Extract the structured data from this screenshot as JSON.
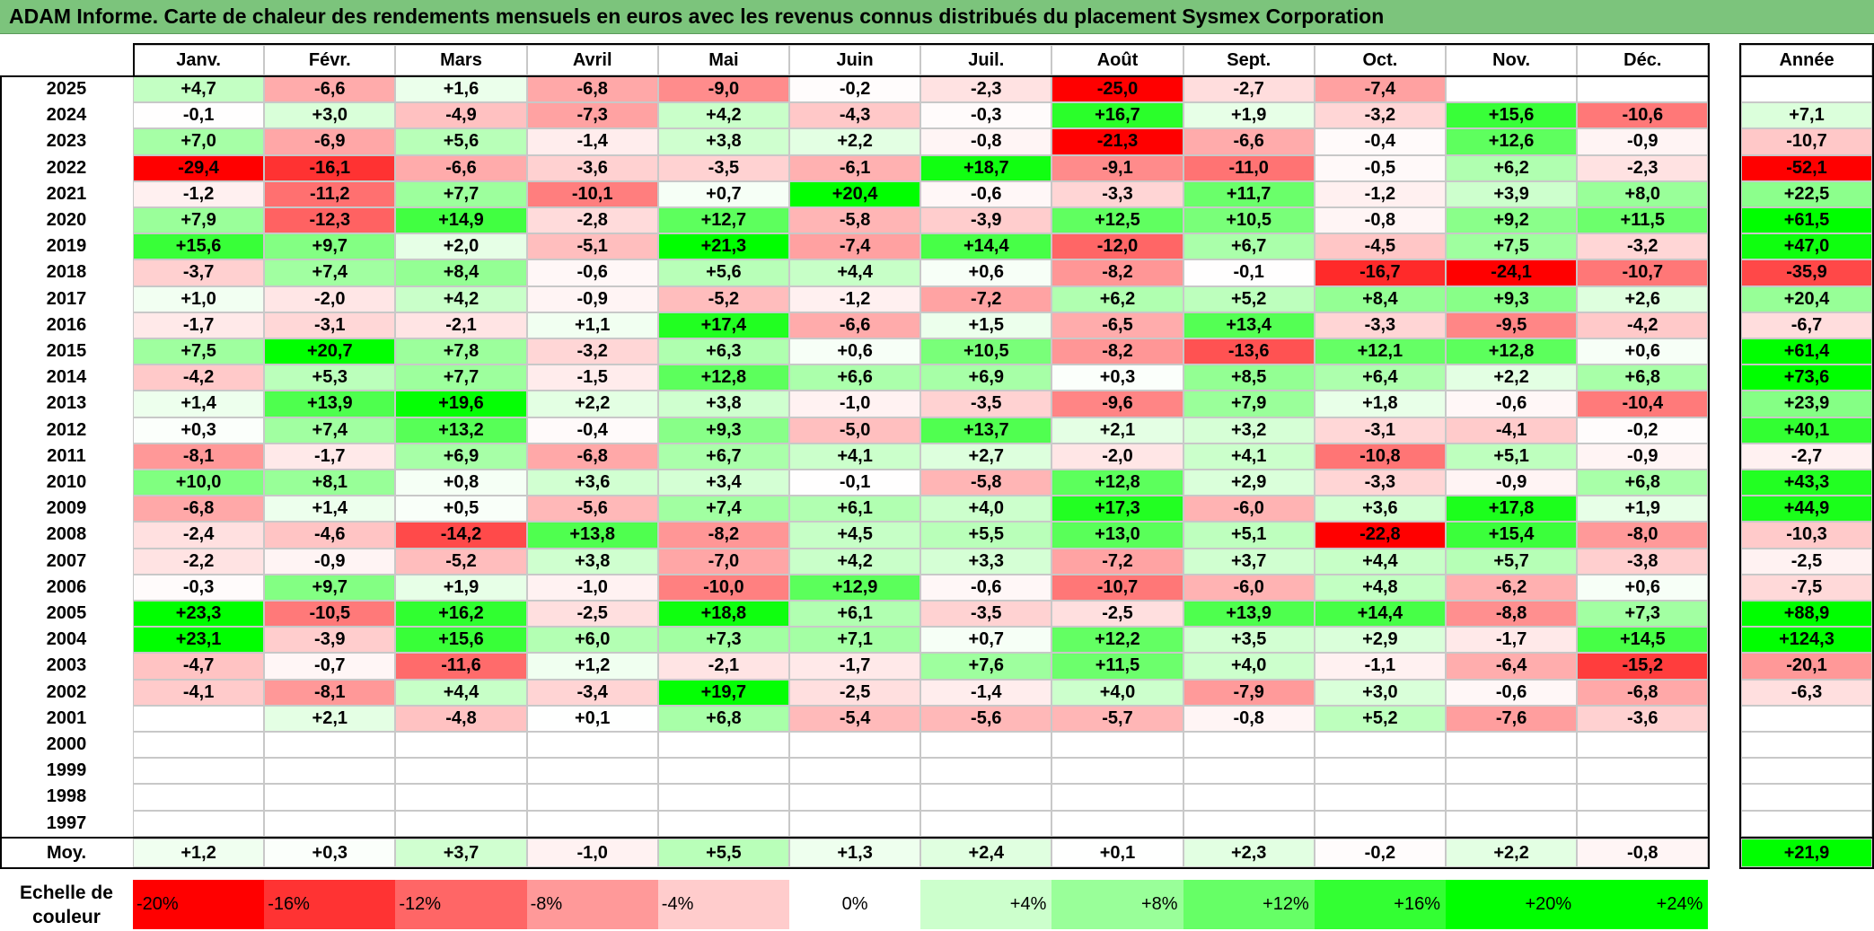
{
  "title": "ADAM Informe. Carte de chaleur des rendements mensuels en euros avec les revenus connus distribués du placement Sysmex Corporation",
  "months": [
    "Janv.",
    "Févr.",
    "Mars",
    "Avril",
    "Mai",
    "Juin",
    "Juil.",
    "Août",
    "Sept.",
    "Oct.",
    "Nov.",
    "Déc."
  ],
  "year_header": "Année",
  "average_label": "Moy.",
  "scale_label_line1": "Echelle de",
  "scale_label_line2": "couleur",
  "colors": {
    "negative": "#ff0000",
    "positive": "#00ff00",
    "neutral": "#ffffff",
    "title_bg": "#7cc47c"
  },
  "chart_data": {
    "type": "heatmap",
    "title": "ADAM Informe. Carte de chaleur des rendements mensuels en euros avec les revenus connus distribués du placement Sysmex Corporation",
    "rows": [
      {
        "year": "2025",
        "values": [
          "+4,7",
          "-6,6",
          "+1,6",
          "-6,8",
          "-9,0",
          "-0,2",
          "-2,3",
          "-25,0",
          "-2,7",
          "-7,4",
          "",
          ""
        ],
        "annual": ""
      },
      {
        "year": "2024",
        "values": [
          "-0,1",
          "+3,0",
          "-4,9",
          "-7,3",
          "+4,2",
          "-4,3",
          "-0,3",
          "+16,7",
          "+1,9",
          "-3,2",
          "+15,6",
          "-10,6"
        ],
        "annual": "+7,1"
      },
      {
        "year": "2023",
        "values": [
          "+7,0",
          "-6,9",
          "+5,6",
          "-1,4",
          "+3,8",
          "+2,2",
          "-0,8",
          "-21,3",
          "-6,6",
          "-0,4",
          "+12,6",
          "-0,9"
        ],
        "annual": "-10,7"
      },
      {
        "year": "2022",
        "values": [
          "-29,4",
          "-16,1",
          "-6,6",
          "-3,6",
          "-3,5",
          "-6,1",
          "+18,7",
          "-9,1",
          "-11,0",
          "-0,5",
          "+6,2",
          "-2,3"
        ],
        "annual": "-52,1"
      },
      {
        "year": "2021",
        "values": [
          "-1,2",
          "-11,2",
          "+7,7",
          "-10,1",
          "+0,7",
          "+20,4",
          "-0,6",
          "-3,3",
          "+11,7",
          "-1,2",
          "+3,9",
          "+8,0"
        ],
        "annual": "+22,5"
      },
      {
        "year": "2020",
        "values": [
          "+7,9",
          "-12,3",
          "+14,9",
          "-2,8",
          "+12,7",
          "-5,8",
          "-3,9",
          "+12,5",
          "+10,5",
          "-0,8",
          "+9,2",
          "+11,5"
        ],
        "annual": "+61,5"
      },
      {
        "year": "2019",
        "values": [
          "+15,6",
          "+9,7",
          "+2,0",
          "-5,1",
          "+21,3",
          "-7,4",
          "+14,4",
          "-12,0",
          "+6,7",
          "-4,5",
          "+7,5",
          "-3,2"
        ],
        "annual": "+47,0"
      },
      {
        "year": "2018",
        "values": [
          "-3,7",
          "+7,4",
          "+8,4",
          "-0,6",
          "+5,6",
          "+4,4",
          "+0,6",
          "-8,2",
          "-0,1",
          "-16,7",
          "-24,1",
          "-10,7"
        ],
        "annual": "-35,9"
      },
      {
        "year": "2017",
        "values": [
          "+1,0",
          "-2,0",
          "+4,2",
          "-0,9",
          "-5,2",
          "-1,2",
          "-7,2",
          "+6,2",
          "+5,2",
          "+8,4",
          "+9,3",
          "+2,6"
        ],
        "annual": "+20,4"
      },
      {
        "year": "2016",
        "values": [
          "-1,7",
          "-3,1",
          "-2,1",
          "+1,1",
          "+17,4",
          "-6,6",
          "+1,5",
          "-6,5",
          "+13,4",
          "-3,3",
          "-9,5",
          "-4,2"
        ],
        "annual": "-6,7"
      },
      {
        "year": "2015",
        "values": [
          "+7,5",
          "+20,7",
          "+7,8",
          "-3,2",
          "+6,3",
          "+0,6",
          "+10,5",
          "-8,2",
          "-13,6",
          "+12,1",
          "+12,8",
          "+0,6"
        ],
        "annual": "+61,4"
      },
      {
        "year": "2014",
        "values": [
          "-4,2",
          "+5,3",
          "+7,7",
          "-1,5",
          "+12,8",
          "+6,6",
          "+6,9",
          "+0,3",
          "+8,5",
          "+6,4",
          "+2,2",
          "+6,8"
        ],
        "annual": "+73,6"
      },
      {
        "year": "2013",
        "values": [
          "+1,4",
          "+13,9",
          "+19,6",
          "+2,2",
          "+3,8",
          "-1,0",
          "-3,5",
          "-9,6",
          "+7,9",
          "+1,8",
          "-0,6",
          "-10,4"
        ],
        "annual": "+23,9"
      },
      {
        "year": "2012",
        "values": [
          "+0,3",
          "+7,4",
          "+13,2",
          "-0,4",
          "+9,3",
          "-5,0",
          "+13,7",
          "+2,1",
          "+3,2",
          "-3,1",
          "-4,1",
          "-0,2"
        ],
        "annual": "+40,1"
      },
      {
        "year": "2011",
        "values": [
          "-8,1",
          "-1,7",
          "+6,9",
          "-6,8",
          "+6,7",
          "+4,1",
          "+2,7",
          "-2,0",
          "+4,1",
          "-10,8",
          "+5,1",
          "-0,9"
        ],
        "annual": "-2,7"
      },
      {
        "year": "2010",
        "values": [
          "+10,0",
          "+8,1",
          "+0,8",
          "+3,6",
          "+3,4",
          "-0,1",
          "-5,8",
          "+12,8",
          "+2,9",
          "-3,3",
          "-0,9",
          "+6,8"
        ],
        "annual": "+43,3"
      },
      {
        "year": "2009",
        "values": [
          "-6,8",
          "+1,4",
          "+0,5",
          "-5,6",
          "+7,4",
          "+6,1",
          "+4,0",
          "+17,3",
          "-6,0",
          "+3,6",
          "+17,8",
          "+1,9"
        ],
        "annual": "+44,9"
      },
      {
        "year": "2008",
        "values": [
          "-2,4",
          "-4,6",
          "-14,2",
          "+13,8",
          "-8,2",
          "+4,5",
          "+5,5",
          "+13,0",
          "+5,1",
          "-22,8",
          "+15,4",
          "-8,0"
        ],
        "annual": "-10,3"
      },
      {
        "year": "2007",
        "values": [
          "-2,2",
          "-0,9",
          "-5,2",
          "+3,8",
          "-7,0",
          "+4,2",
          "+3,3",
          "-7,2",
          "+3,7",
          "+4,4",
          "+5,7",
          "-3,8"
        ],
        "annual": "-2,5"
      },
      {
        "year": "2006",
        "values": [
          "-0,3",
          "+9,7",
          "+1,9",
          "-1,0",
          "-10,0",
          "+12,9",
          "-0,6",
          "-10,7",
          "-6,0",
          "+4,8",
          "-6,2",
          "+0,6"
        ],
        "annual": "-7,5"
      },
      {
        "year": "2005",
        "values": [
          "+23,3",
          "-10,5",
          "+16,2",
          "-2,5",
          "+18,8",
          "+6,1",
          "-3,5",
          "-2,5",
          "+13,9",
          "+14,4",
          "-8,8",
          "+7,3"
        ],
        "annual": "+88,9"
      },
      {
        "year": "2004",
        "values": [
          "+23,1",
          "-3,9",
          "+15,6",
          "+6,0",
          "+7,3",
          "+7,1",
          "+0,7",
          "+12,2",
          "+3,5",
          "+2,9",
          "-1,7",
          "+14,5"
        ],
        "annual": "+124,3"
      },
      {
        "year": "2003",
        "values": [
          "-4,7",
          "-0,7",
          "-11,6",
          "+1,2",
          "-2,1",
          "-1,7",
          "+7,6",
          "+11,5",
          "+4,0",
          "-1,1",
          "-6,4",
          "-15,2"
        ],
        "annual": "-20,1"
      },
      {
        "year": "2002",
        "values": [
          "-4,1",
          "-8,1",
          "+4,4",
          "-3,4",
          "+19,7",
          "-2,5",
          "-1,4",
          "+4,0",
          "-7,9",
          "+3,0",
          "-0,6",
          "-6,8"
        ],
        "annual": "-6,3"
      },
      {
        "year": "2001",
        "values": [
          "",
          "+2,1",
          "-4,8",
          "+0,1",
          "+6,8",
          "-5,4",
          "-5,6",
          "-5,7",
          "-0,8",
          "+5,2",
          "-7,6",
          "-3,6"
        ],
        "annual": ""
      },
      {
        "year": "2000",
        "values": [
          "",
          "",
          "",
          "",
          "",
          "",
          "",
          "",
          "",
          "",
          "",
          ""
        ],
        "annual": ""
      },
      {
        "year": "1999",
        "values": [
          "",
          "",
          "",
          "",
          "",
          "",
          "",
          "",
          "",
          "",
          "",
          ""
        ],
        "annual": ""
      },
      {
        "year": "1998",
        "values": [
          "",
          "",
          "",
          "",
          "",
          "",
          "",
          "",
          "",
          "",
          "",
          ""
        ],
        "annual": ""
      },
      {
        "year": "1997",
        "values": [
          "",
          "",
          "",
          "",
          "",
          "",
          "",
          "",
          "",
          "",
          "",
          ""
        ],
        "annual": ""
      }
    ],
    "averages": [
      "+1,2",
      "+0,3",
      "+3,7",
      "-1,0",
      "+5,5",
      "+1,3",
      "+2,4",
      "+0,1",
      "+2,3",
      "-0,2",
      "+2,2",
      "-0,8"
    ],
    "average_annual": "+21,9",
    "scale": [
      "-20%",
      "-16%",
      "-12%",
      "-8%",
      "-4%",
      "0%",
      "+4%",
      "+8%",
      "+12%",
      "+16%",
      "+20%",
      "+24%"
    ]
  }
}
